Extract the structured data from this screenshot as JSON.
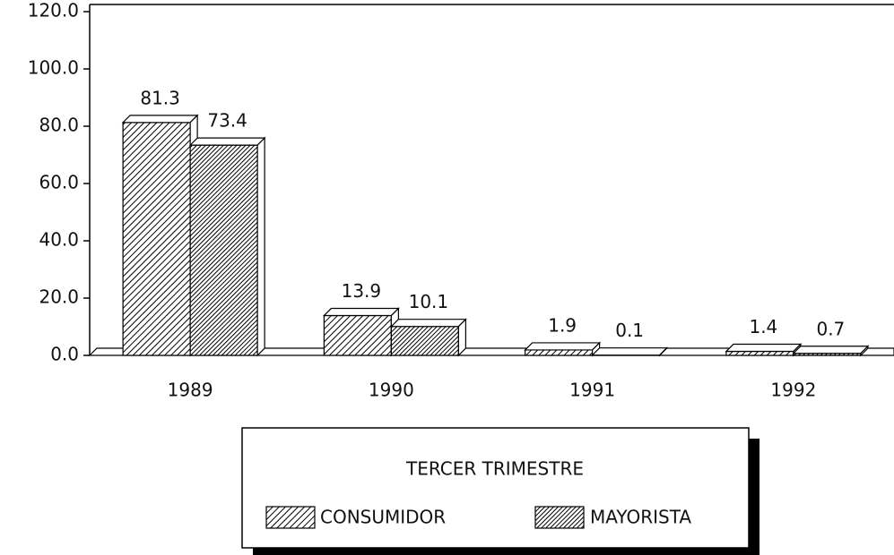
{
  "chart_data": {
    "type": "bar",
    "categories": [
      "1989",
      "1990",
      "1991",
      "1992"
    ],
    "series": [
      {
        "name": "CONSUMIDOR",
        "color": "#000000",
        "values": [
          81.3,
          13.9,
          1.9,
          1.4
        ]
      },
      {
        "name": "MAYORISTA",
        "color": "#000000",
        "values": [
          73.4,
          10.1,
          0.1,
          0.7
        ]
      }
    ],
    "ylim": [
      0,
      120
    ],
    "yticks": [
      {
        "value": 0,
        "label": "0.0"
      },
      {
        "value": 20,
        "label": "20.0"
      },
      {
        "value": 40,
        "label": "40.0"
      },
      {
        "value": 60,
        "label": "60.0"
      },
      {
        "value": 80,
        "label": "80.0"
      },
      {
        "value": 100,
        "label": "100.0"
      },
      {
        "value": 120,
        "label": "120.0"
      }
    ],
    "legend": "bottom",
    "legend_title": "TERCER TRIMESTRE"
  }
}
